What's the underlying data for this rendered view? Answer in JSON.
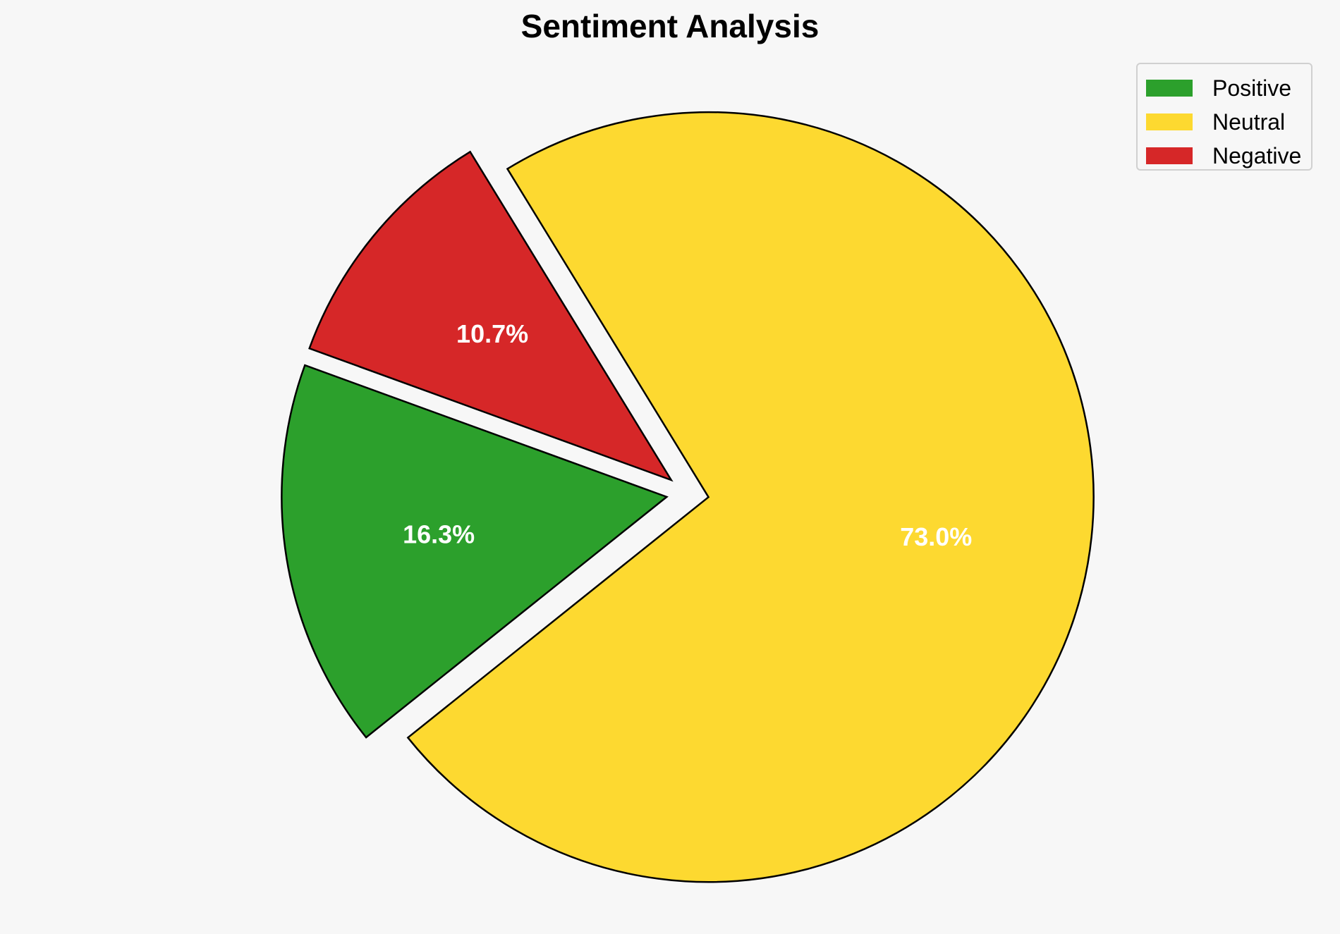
{
  "chart_data": {
    "type": "pie",
    "title": "Sentiment Analysis",
    "slices": [
      {
        "label": "Positive",
        "value": 16.3,
        "display": "16.3%",
        "color": "#2ca02c",
        "exploded": true
      },
      {
        "label": "Neutral",
        "value": 73.0,
        "display": "73.0%",
        "color": "#fdd930",
        "exploded": true
      },
      {
        "label": "Negative",
        "value": 10.7,
        "display": "10.7%",
        "color": "#d62728",
        "exploded": true
      }
    ],
    "legend": {
      "position": "top-right",
      "items": [
        {
          "label": "Positive",
          "color": "#2ca02c"
        },
        {
          "label": "Neutral",
          "color": "#fdd930"
        },
        {
          "label": "Negative",
          "color": "#d62728"
        }
      ]
    },
    "label_color": "#ffffff",
    "edge_color": "#000000"
  }
}
